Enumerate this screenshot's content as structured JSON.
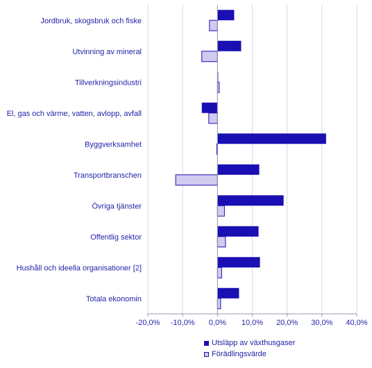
{
  "chart_data": {
    "type": "bar",
    "orientation": "horizontal",
    "categories": [
      "Jordbruk, skogsbruk och fiske",
      "Utvinning av mineral",
      "Tillverkningsindustri",
      "El, gas och värme, vatten, avlopp, avfall",
      "Byggverksamhet",
      "Transportbranschen",
      "Övriga tjänster",
      "Offentlig sektor",
      "Hushåll och ideella organisationer [2]",
      "Totala ekonomin"
    ],
    "series": [
      {
        "name": "Utsläpp av växthusgaser",
        "color": "#1a0fb3",
        "values": [
          4.8,
          6.8,
          0.2,
          -4.5,
          31.2,
          12.0,
          19.0,
          11.8,
          12.2,
          6.2
        ]
      },
      {
        "name": "Förädlingsvärde",
        "color": "#d0cbef",
        "values": [
          -2.3,
          -4.5,
          0.5,
          -2.5,
          -0.2,
          -12.0,
          2.0,
          2.3,
          1.2,
          0.9
        ]
      }
    ],
    "xlim": [
      -20,
      40
    ],
    "x_ticks": [
      "-20,0%",
      "-10,0%",
      "0,0%",
      "10,0%",
      "20,0%",
      "30,0%",
      "40,0%"
    ],
    "grid": true,
    "legend_position": "bottom"
  }
}
